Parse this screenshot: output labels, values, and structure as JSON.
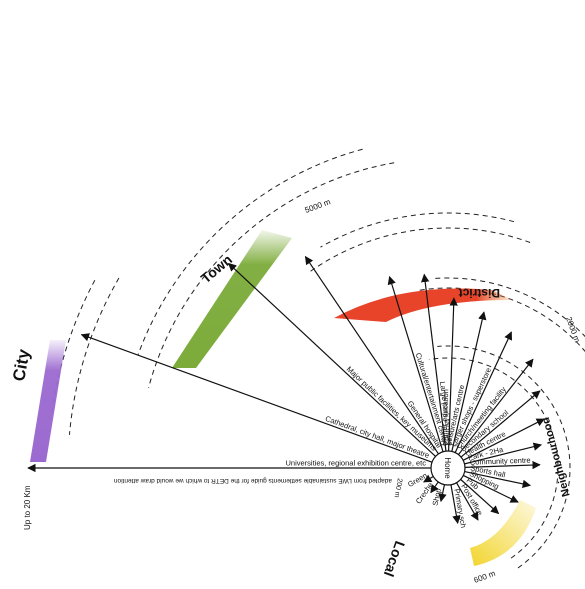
{
  "hub": {
    "label": "Home"
  },
  "bands": {
    "city": {
      "title": "City",
      "note": "Up to 20 Km",
      "color": "#9b6ad0"
    },
    "town": {
      "title": "Town",
      "note": "5000 m",
      "color": "#7cab3a"
    },
    "district": {
      "title": "District",
      "note": "2000 m",
      "color": "#e63a1f"
    },
    "neighbourhood": {
      "title": "Neighbourhood",
      "note": "600 m",
      "color": "#f2d52e"
    },
    "local": {
      "title": "Local",
      "note": "200 m"
    }
  },
  "spokes": [
    {
      "label": "Universities, regional exhibition centre, etc",
      "len": 420
    },
    {
      "label": "Cathedral, city hall, major theatre",
      "len": 390
    },
    {
      "label": "Major public facilities, key museums",
      "len": 300
    },
    {
      "label": "General hospital",
      "len": 255
    },
    {
      "label": "Cultural/entertainment centre",
      "len": 200
    },
    {
      "label": "Large park facilities",
      "len": 195
    },
    {
      "label": "Higher education",
      "len": 170
    },
    {
      "label": "Leisure/arts centre",
      "len": 160
    },
    {
      "label": "Larger shops - superstore",
      "len": 150
    },
    {
      "label": "Church/meeting facility",
      "len": 138
    },
    {
      "label": "Secondary school",
      "len": 120
    },
    {
      "label": "Health centre",
      "len": 108
    },
    {
      "label": "Park - 2Ha",
      "len": 96
    },
    {
      "label": "Community centre",
      "len": 92
    },
    {
      "label": "Sports hall",
      "len": 84
    },
    {
      "label": "Shopping",
      "len": 78
    },
    {
      "label": "Pub",
      "len": 68
    },
    {
      "label": "Post office",
      "len": 60
    },
    {
      "label": "Primary sch",
      "len": 56
    },
    {
      "label": "Shop",
      "len": 34
    },
    {
      "label": "Creche",
      "len": 30
    },
    {
      "label": "Green",
      "len": 28
    }
  ],
  "source_note": "adapted from LWE sustainable settlements guide for the DETR to which we would draw attention"
}
